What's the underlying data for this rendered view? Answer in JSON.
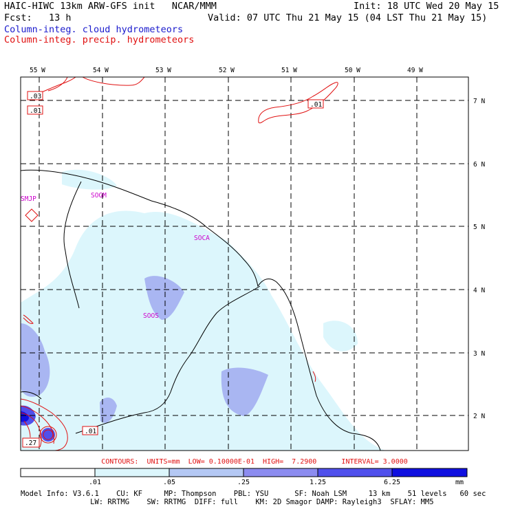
{
  "header": {
    "title": "HAIC-HIWC 13km ARW-GFS init   NCAR/MMM",
    "init": "Init: 18 UTC Wed 20 May 15",
    "fcst": "Fcst:   13 h",
    "valid": "Valid: 07 UTC Thu 21 May 15 (04 LST Thu 21 May 15)",
    "field1": "Column-integ. cloud hydrometeors",
    "field2": "Column-integ. precip. hydrometeors"
  },
  "map": {
    "lon_labels": [
      "55 W",
      "54 W",
      "53 W",
      "52 W",
      "51 W",
      "50 W",
      "49 W"
    ],
    "lat_labels": [
      "7 N",
      "6 N",
      "5 N",
      "4 N",
      "3 N",
      "2 N"
    ],
    "stations": [
      "SMJP",
      "SOGM",
      "SOCA",
      "SOOS"
    ],
    "contour_labels": [
      ".03",
      ".01",
      ".01",
      ".01",
      ".27"
    ],
    "colors": {
      "cloud_contour": "#1a1acc",
      "precip_contour": "#e01010",
      "coast": "#000000",
      "grid": "#000000"
    }
  },
  "contour_info": "CONTOURS:  UNITS=mm  LOW= 0.10000E-01  HIGH=  7.2900      INTERVAL= 3.0000",
  "colorbar": {
    "values": [
      ".01",
      ".05",
      ".25",
      "1.25",
      "6.25"
    ],
    "units": "mm",
    "colors": [
      "#ffffff",
      "#dcf6fc",
      "#b4c8f4",
      "#8c8cf0",
      "#5050ec",
      "#1010e0"
    ]
  },
  "footer": {
    "line1": "Model Info: V3.6.1    CU: KF     MP: Thompson    PBL: YSU      SF: Noah LSM     13 km    51 levels   60 sec",
    "line2": "                LW: RRTMG    SW: RRTMG  DIFF: full    KM: 2D Smagor DAMP: Rayleigh3  SFLAY: MM5"
  }
}
